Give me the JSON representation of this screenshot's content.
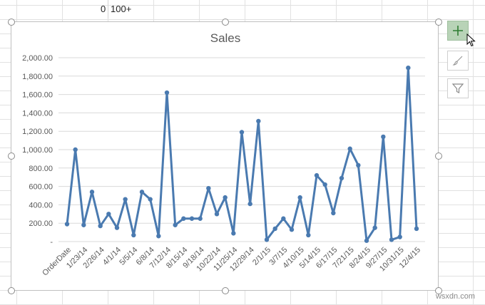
{
  "sheet": {
    "cell_a": "0",
    "cell_b": "100+"
  },
  "chart_data": {
    "type": "line",
    "title": "Sales",
    "xlabel": "",
    "ylabel": "",
    "ylim": [
      0,
      2000
    ],
    "yticks": [
      0,
      200,
      400,
      600,
      800,
      1000,
      1200,
      1400,
      1600,
      1800,
      2000
    ],
    "ytick_labels": [
      "-",
      "200.00",
      "400.00",
      "600.00",
      "800.00",
      "1,000.00",
      "1,200.00",
      "1,400.00",
      "1,600.00",
      "1,800.00",
      "2,000.00"
    ],
    "grid": true,
    "legend": "none",
    "line_color": "#4a7ab0",
    "x_tick_labels": [
      "OrderDate",
      "1/23/14",
      "2/26/14",
      "4/1/14",
      "5/5/14",
      "6/8/14",
      "7/12/14",
      "8/15/14",
      "9/18/14",
      "10/22/14",
      "11/25/14",
      "12/29/14",
      "2/1/15",
      "3/7/15",
      "4/10/15",
      "5/14/15",
      "6/17/15",
      "7/21/15",
      "8/24/15",
      "9/27/15",
      "10/31/15",
      "12/4/15"
    ],
    "values": [
      190,
      1000,
      180,
      540,
      170,
      300,
      150,
      460,
      70,
      540,
      460,
      60,
      1620,
      180,
      250,
      250,
      250,
      580,
      300,
      480,
      90,
      1190,
      410,
      1310,
      20,
      140,
      250,
      130,
      480,
      70,
      720,
      620,
      310,
      690,
      1010,
      830,
      10,
      150,
      1140,
      20,
      50,
      1890,
      140
    ]
  },
  "side_buttons": [
    {
      "name": "chart-elements-button",
      "icon": "plus-icon"
    },
    {
      "name": "chart-styles-button",
      "icon": "paintbrush-icon"
    },
    {
      "name": "chart-filters-button",
      "icon": "filter-icon"
    }
  ],
  "watermark": "wsxdn.com"
}
